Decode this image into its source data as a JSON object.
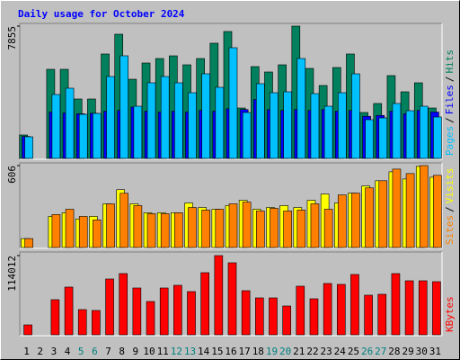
{
  "title": "Daily usage for October 2024",
  "legend_separator": "/",
  "chart_data": [
    {
      "type": "bar",
      "categories": [
        "1",
        "2",
        "3",
        "4",
        "5",
        "6",
        "7",
        "8",
        "9",
        "10",
        "11",
        "12",
        "13",
        "14",
        "15",
        "16",
        "17",
        "18",
        "19",
        "20",
        "21",
        "22",
        "23",
        "24",
        "25",
        "26",
        "27",
        "28",
        "29",
        "30",
        "31"
      ],
      "category_colors": [
        "#000000",
        "#000000",
        "#000000",
        "#000000",
        "#008080",
        "#008080",
        "#000000",
        "#000000",
        "#000000",
        "#000000",
        "#000000",
        "#008080",
        "#008080",
        "#000000",
        "#000000",
        "#000000",
        "#000000",
        "#000000",
        "#008080",
        "#008080",
        "#000000",
        "#000000",
        "#000000",
        "#000000",
        "#000000",
        "#008080",
        "#008080",
        "#000000",
        "#000000",
        "#000000",
        "#000000"
      ],
      "ylim": [
        0,
        7855
      ],
      "yticks": [
        7855
      ],
      "series": [
        {
          "name": "Hits",
          "color": "#00805C",
          "values": [
            1390,
            0,
            5290,
            5290,
            3527,
            3527,
            6200,
            7374,
            4700,
            5664,
            5930,
            6090,
            5557,
            5930,
            6840,
            7534,
            2992,
            5450,
            5130,
            5557,
            7855,
            5343,
            4328,
            5397,
            6200,
            2725,
            3260,
            4916,
            3954,
            4488,
            2992
          ]
        },
        {
          "name": "Files",
          "color": "#0000FF",
          "values": [
            1300,
            0,
            2750,
            2700,
            2650,
            2680,
            2800,
            2850,
            3050,
            2800,
            2750,
            2800,
            2750,
            2850,
            2800,
            2950,
            2900,
            3500,
            2900,
            2850,
            2900,
            2850,
            2900,
            2800,
            2850,
            2500,
            2550,
            2800,
            2650,
            2850,
            2750
          ]
        },
        {
          "name": "Pages",
          "color": "#00C0FF",
          "values": [
            1282,
            0,
            3794,
            4168,
            2618,
            2672,
            4862,
            6092,
            3099,
            4488,
            4862,
            4488,
            3900,
            5023,
            4221,
            6572,
            2725,
            4435,
            3900,
            3954,
            5931,
            3847,
            3099,
            3900,
            5023,
            2298,
            2405,
            3260,
            2832,
            3099,
            2458
          ]
        }
      ]
    },
    {
      "type": "bar",
      "ylim": [
        0,
        606
      ],
      "yticks": [
        606
      ],
      "series": [
        {
          "name": "Visits",
          "color": "#FFFF00",
          "values": [
            66,
            0,
            230,
            257,
            211,
            230,
            323,
            428,
            323,
            257,
            257,
            257,
            329,
            296,
            283,
            310,
            349,
            283,
            296,
            310,
            296,
            349,
            395,
            329,
            402,
            455,
            494,
            560,
            507,
            600,
            520
          ]
        },
        {
          "name": "Sites",
          "color": "#FF8000",
          "values": [
            66,
            0,
            244,
            283,
            230,
            204,
            323,
            401,
            310,
            250,
            250,
            257,
            296,
            277,
            283,
            323,
            336,
            270,
            290,
            270,
            277,
            323,
            283,
            389,
            402,
            441,
            494,
            580,
            547,
            606,
            534
          ]
        }
      ]
    },
    {
      "type": "bar",
      "ylim": [
        0,
        114012
      ],
      "yticks": [
        114012
      ],
      "series": [
        {
          "name": "KBytes",
          "color": "#FF0000",
          "values": [
            14256,
            0,
            50540,
            68680,
            36290,
            35000,
            80350,
            88120,
            67390,
            47950,
            67390,
            71270,
            62200,
            89420,
            114012,
            103670,
            63500,
            53130,
            53130,
            41470,
            69980,
            51840,
            73870,
            72570,
            86830,
            57020,
            58320,
            88120,
            77760,
            77760,
            76460
          ]
        }
      ]
    }
  ]
}
